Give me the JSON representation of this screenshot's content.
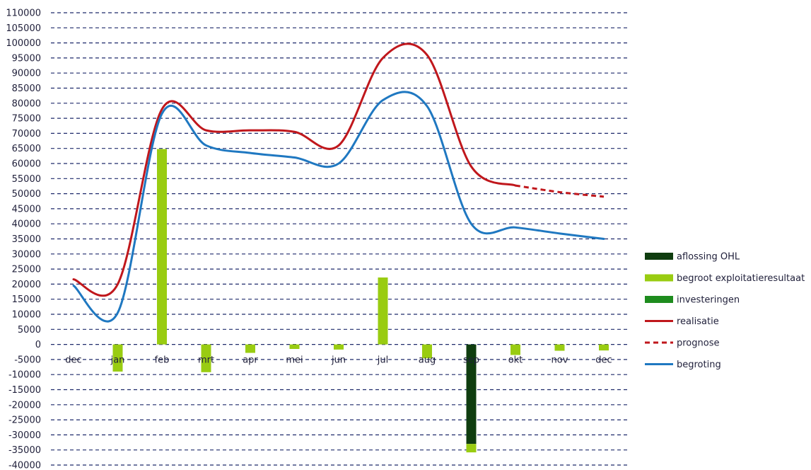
{
  "chart_data": {
    "type": "bar",
    "title": "",
    "xlabel": "",
    "ylabel": "",
    "ylim": [
      -40000,
      110000
    ],
    "ytick_step": 5000,
    "grid": true,
    "legend_position": "right",
    "categories": [
      "dec",
      "jan",
      "feb",
      "mrt",
      "apr",
      "mei",
      "jun",
      "jul",
      "aug",
      "sep",
      "okt",
      "nov",
      "dec"
    ],
    "series": [
      {
        "name": "aflossing OHL",
        "kind": "bar",
        "color": "#0f3d0f",
        "values": [
          0,
          0,
          0,
          0,
          0,
          0,
          0,
          0,
          0,
          -33000,
          0,
          0,
          0
        ]
      },
      {
        "name": "begroot exploitatieresultaat",
        "kind": "bar",
        "color": "#99cc11",
        "values": [
          0,
          -9000,
          64800,
          -9200,
          -2800,
          -1500,
          -1700,
          22200,
          -4600,
          -2800,
          -3500,
          -2100,
          -2000
        ]
      },
      {
        "name": "investeringen",
        "kind": "bar",
        "color": "#1e8c1e",
        "values": [
          0,
          0,
          0,
          0,
          0,
          0,
          0,
          0,
          0,
          0,
          0,
          0,
          0
        ]
      },
      {
        "name": "realisatie",
        "kind": "line",
        "color": "#c0171c",
        "dash": false,
        "values": [
          21600,
          20000,
          78000,
          71000,
          71000,
          70500,
          66000,
          95000,
          96000,
          59000,
          52700,
          null,
          null
        ]
      },
      {
        "name": "prognose",
        "kind": "line",
        "color": "#c0171c",
        "dash": true,
        "values": [
          null,
          null,
          null,
          null,
          null,
          null,
          null,
          null,
          null,
          null,
          52700,
          50500,
          49000
        ]
      },
      {
        "name": "begroting",
        "kind": "line",
        "color": "#1f78c1",
        "dash": false,
        "values": [
          19500,
          10500,
          76500,
          66000,
          63500,
          62000,
          60000,
          81000,
          79000,
          40000,
          38800,
          36800,
          35000
        ]
      }
    ]
  }
}
